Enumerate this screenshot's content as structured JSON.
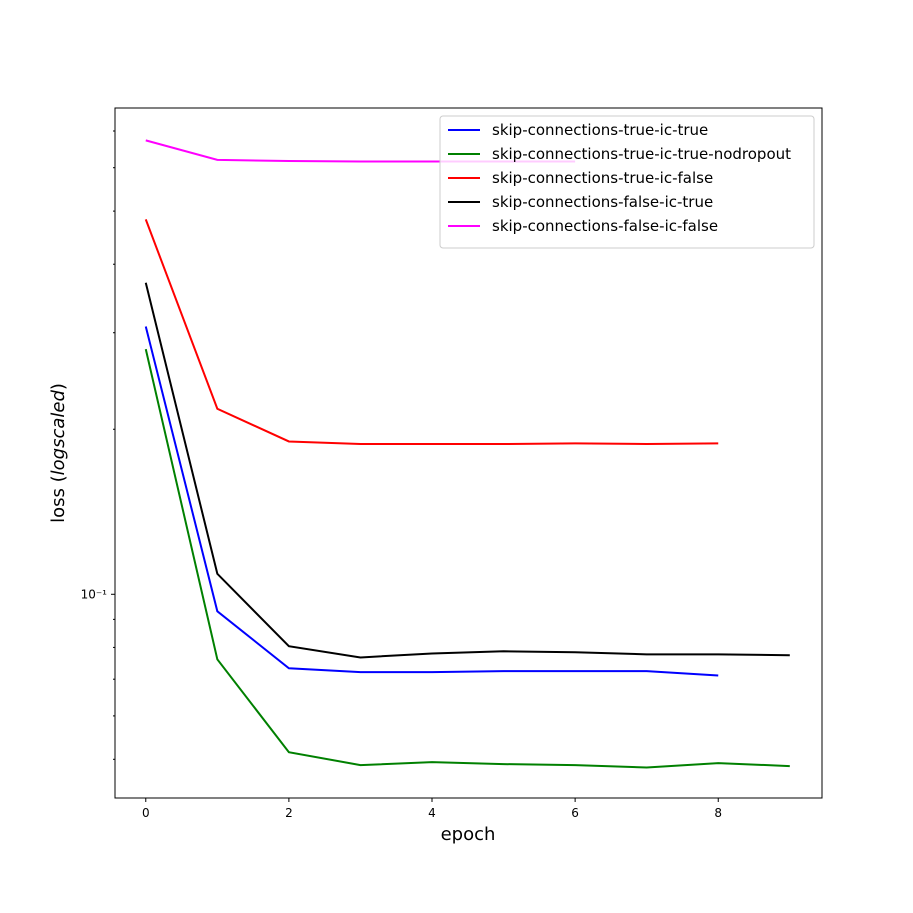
{
  "chart_data": {
    "type": "line",
    "xlabel": "epoch",
    "ylabel": [
      "loss (",
      "logscaled",
      ")"
    ],
    "yscale": "log",
    "xlim": [
      -0.43,
      9.45
    ],
    "ylim": [
      0.0425,
      0.771
    ],
    "xticks": [
      0,
      2,
      4,
      6,
      8
    ],
    "yticks": [
      {
        "value": 0.1,
        "label": "10⁻¹"
      }
    ],
    "yticks_minor": [
      0.05,
      0.06,
      0.07,
      0.08,
      0.09,
      0.2,
      0.3,
      0.4,
      0.5,
      0.6,
      0.7
    ],
    "legend": "upper right",
    "series": [
      {
        "name": "skip-connections-true-ic-true",
        "color": "#0000ff",
        "x": [
          0,
          1,
          2,
          3,
          4,
          5,
          6,
          7,
          8
        ],
        "values": [
          0.308,
          0.0931,
          0.0733,
          0.0721,
          0.0721,
          0.0724,
          0.0724,
          0.0724,
          0.0711
        ]
      },
      {
        "name": "skip-connections-true-ic-true-nodropout",
        "color": "#008000",
        "x": [
          0,
          1,
          2,
          3,
          4,
          5,
          6,
          7,
          8,
          9
        ],
        "values": [
          0.28,
          0.0761,
          0.0515,
          0.0488,
          0.0494,
          0.049,
          0.0488,
          0.0483,
          0.0492,
          0.0486
        ]
      },
      {
        "name": "skip-connections-true-ic-false",
        "color": "#ff0000",
        "x": [
          0,
          1,
          2,
          3,
          4,
          5,
          6,
          7,
          8
        ],
        "values": [
          0.483,
          0.218,
          0.19,
          0.188,
          0.188,
          0.188,
          0.1885,
          0.188,
          0.1885
        ]
      },
      {
        "name": "skip-connections-false-ic-true",
        "color": "#000000",
        "x": [
          0,
          1,
          2,
          3,
          4,
          5,
          6,
          7,
          8,
          9
        ],
        "values": [
          0.37,
          0.109,
          0.0804,
          0.0767,
          0.078,
          0.0787,
          0.0784,
          0.0777,
          0.0777,
          0.0774
        ]
      },
      {
        "name": "skip-connections-false-ic-false",
        "color": "#ff00ff",
        "x": [
          0,
          1,
          2,
          3,
          4,
          5,
          6
        ],
        "values": [
          0.673,
          0.62,
          0.617,
          0.616,
          0.616,
          0.616,
          0.616
        ]
      }
    ]
  }
}
